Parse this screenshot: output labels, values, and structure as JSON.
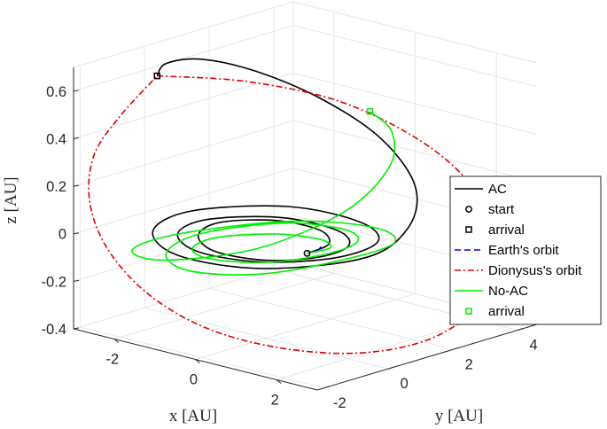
{
  "chart_data": {
    "type": "line3d",
    "xlabel": "x [AU]",
    "ylabel": "y [AU]",
    "zlabel": "z [AU]",
    "x_ticks": [
      "-2",
      "0",
      "2"
    ],
    "y_ticks": [
      "-2",
      "0",
      "2",
      "4"
    ],
    "z_ticks": [
      "-0.4",
      "-0.2",
      "0",
      "0.2",
      "0.4",
      "0.6"
    ],
    "xlim": [
      -3,
      3
    ],
    "ylim": [
      -2.2,
      4.6
    ],
    "zlim": [
      -0.4,
      0.7
    ],
    "grid": true,
    "legend_position": "right",
    "colors": {
      "ac": "#000000",
      "earth": "#0000ff",
      "dionysus": "#dd0000",
      "noac": "#00ee00",
      "axis": "#262626",
      "grid": "#e6e6e6"
    },
    "series": [
      {
        "name": "AC",
        "kind": "line",
        "color": "#000000",
        "dash": "solid",
        "points": [
          [
            1.0,
            0.0,
            0.0
          ],
          [
            0.9,
            0.8,
            0.003
          ],
          [
            0.2,
            1.4,
            0.006
          ],
          [
            -0.8,
            1.3,
            0.008
          ],
          [
            -1.45,
            0.4,
            0.009
          ],
          [
            -1.2,
            -0.6,
            0.008
          ],
          [
            -0.3,
            -1.25,
            0.005
          ],
          [
            0.75,
            -1.0,
            0.001
          ],
          [
            1.3,
            0.0,
            -0.003
          ],
          [
            1.15,
            1.1,
            -0.005
          ],
          [
            0.3,
            1.8,
            -0.006
          ],
          [
            -1.0,
            1.7,
            -0.004
          ],
          [
            -1.85,
            0.5,
            0.0
          ],
          [
            -1.55,
            -0.8,
            0.006
          ],
          [
            -0.4,
            -1.6,
            0.011
          ],
          [
            0.95,
            -1.3,
            0.014
          ],
          [
            1.75,
            0.0,
            0.015
          ],
          [
            1.55,
            1.5,
            0.012
          ],
          [
            0.4,
            2.4,
            0.008
          ],
          [
            -1.3,
            2.3,
            0.005
          ],
          [
            -2.4,
            0.7,
            0.004
          ],
          [
            -2.0,
            -1.0,
            0.006
          ],
          [
            -0.5,
            -2.1,
            0.012
          ],
          [
            1.3,
            -1.8,
            0.022
          ],
          [
            2.4,
            0.0,
            0.04
          ],
          [
            2.2,
            1.6,
            0.09
          ],
          [
            1.4,
            2.85,
            0.18
          ],
          [
            0.1,
            3.45,
            0.3
          ],
          [
            -1.2,
            3.25,
            0.42
          ],
          [
            -2.1,
            2.3,
            0.54
          ],
          [
            -2.4,
            1.0,
            0.63
          ],
          [
            -2.15,
            -0.4,
            0.68
          ],
          [
            -1.5,
            -1.5,
            0.7
          ]
        ]
      },
      {
        "name": "start",
        "kind": "marker",
        "marker": "circle",
        "color": "#000000",
        "point": [
          1.0,
          0.0,
          0.0
        ]
      },
      {
        "name": "arrival",
        "kind": "marker",
        "marker": "square",
        "color": "#000000",
        "point": [
          -1.5,
          -1.5,
          0.7
        ]
      },
      {
        "name": "Earth's orbit",
        "kind": "line",
        "color": "#0000ff",
        "dash": "dashed",
        "points": [
          [
            1.0,
            0.0,
            0.0
          ],
          [
            1.0,
            0.3,
            0.0
          ],
          [
            0.9,
            0.55,
            0.0
          ],
          [
            0.75,
            0.72,
            0.0
          ]
        ]
      },
      {
        "name": "Dionysus's orbit",
        "kind": "line",
        "color": "#dd0000",
        "dash": "dashdot",
        "points": [
          [
            -1.5,
            -1.5,
            0.7
          ],
          [
            -0.3,
            -0.3,
            0.68
          ],
          [
            0.9,
            1.0,
            0.6
          ],
          [
            1.9,
            2.1,
            0.45
          ],
          [
            2.5,
            3.0,
            0.26
          ],
          [
            2.75,
            3.5,
            0.05
          ],
          [
            2.7,
            3.7,
            -0.15
          ],
          [
            2.3,
            3.5,
            -0.33
          ],
          [
            1.6,
            2.9,
            -0.46
          ],
          [
            0.7,
            1.9,
            -0.51
          ],
          [
            -0.3,
            0.7,
            -0.48
          ],
          [
            -1.2,
            -0.4,
            -0.39
          ],
          [
            -1.9,
            -1.3,
            -0.24
          ],
          [
            -2.4,
            -1.9,
            -0.05
          ],
          [
            -2.6,
            -2.2,
            0.15
          ],
          [
            -2.5,
            -2.2,
            0.35
          ],
          [
            -2.1,
            -1.9,
            0.52
          ],
          [
            -1.5,
            -1.5,
            0.7
          ]
        ]
      },
      {
        "name": "No-AC",
        "kind": "line",
        "color": "#00ee00",
        "dash": "solid",
        "points": [
          [
            1.0,
            0.0,
            0.0
          ],
          [
            0.85,
            0.9,
            -0.02
          ],
          [
            0.15,
            1.5,
            -0.04
          ],
          [
            -0.85,
            1.4,
            -0.055
          ],
          [
            -1.55,
            0.45,
            -0.06
          ],
          [
            -1.3,
            -0.65,
            -0.05
          ],
          [
            -0.35,
            -1.35,
            -0.025
          ],
          [
            0.85,
            -1.1,
            0.0
          ],
          [
            1.45,
            0.0,
            0.015
          ],
          [
            1.25,
            1.25,
            0.01
          ],
          [
            0.3,
            2.0,
            -0.01
          ],
          [
            -1.1,
            1.9,
            -0.04
          ],
          [
            -2.05,
            0.55,
            -0.07
          ],
          [
            -1.75,
            -0.9,
            -0.08
          ],
          [
            -0.45,
            -1.85,
            -0.06
          ],
          [
            1.1,
            -1.55,
            -0.02
          ],
          [
            2.0,
            0.0,
            0.02
          ],
          [
            1.8,
            1.7,
            0.01
          ],
          [
            0.4,
            2.8,
            -0.03
          ],
          [
            -1.5,
            2.65,
            -0.08
          ],
          [
            -2.75,
            0.8,
            -0.11
          ],
          [
            -2.35,
            -1.2,
            -0.08
          ],
          [
            -0.6,
            -2.4,
            0.0
          ],
          [
            1.4,
            -2.0,
            0.12
          ],
          [
            2.4,
            -0.6,
            0.26
          ],
          [
            2.3,
            0.9,
            0.38
          ],
          [
            1.5,
            2.0,
            0.45
          ],
          [
            0.6,
            2.45,
            0.48
          ]
        ]
      },
      {
        "name": "arrival",
        "kind": "marker",
        "marker": "square",
        "color": "#00ee00",
        "point": [
          0.6,
          2.45,
          0.48
        ]
      }
    ]
  }
}
